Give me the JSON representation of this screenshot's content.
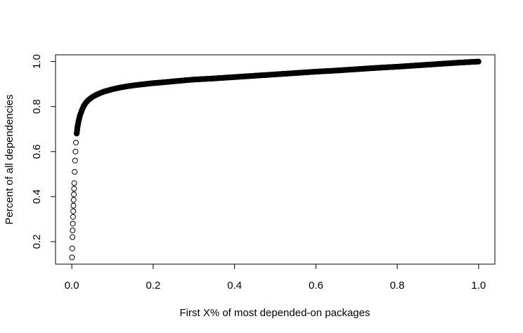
{
  "chart_data": {
    "type": "scatter",
    "title": "",
    "xlabel": "First X% of most depended-on packages",
    "ylabel": "Percent of all dependencies",
    "xlim": [
      -0.04,
      1.04
    ],
    "ylim": [
      0.1,
      1.03
    ],
    "x_ticks": [
      0.0,
      0.2,
      0.4,
      0.6,
      0.8,
      1.0
    ],
    "x_tick_labels": [
      "0.0",
      "0.2",
      "0.4",
      "0.6",
      "0.8",
      "1.0"
    ],
    "y_ticks": [
      0.2,
      0.4,
      0.6,
      0.8,
      1.0
    ],
    "y_tick_labels": [
      "0.2",
      "0.4",
      "0.6",
      "0.8",
      "1.0"
    ],
    "grid": false,
    "legend": "none",
    "marker": "open-circle",
    "marker_color": "#000000",
    "series": [
      {
        "x": [
          0.0005,
          0.001,
          0.0015,
          0.002,
          0.0025,
          0.003,
          0.0035,
          0.004,
          0.0045,
          0.005,
          0.0055,
          0.006,
          0.007,
          0.008,
          0.009,
          0.01,
          0.012,
          0.014,
          0.016,
          0.018,
          0.02,
          0.025,
          0.03,
          0.035,
          0.04,
          0.05,
          0.06,
          0.07,
          0.08,
          0.09,
          0.1,
          0.12,
          0.14,
          0.16,
          0.18,
          0.2,
          0.22,
          0.25,
          0.28,
          0.3,
          0.35,
          0.4,
          0.45,
          0.5,
          0.55,
          0.6,
          0.65,
          0.7,
          0.75,
          0.8,
          0.85,
          0.9,
          0.95,
          1.0
        ],
        "y": [
          0.13,
          0.17,
          0.22,
          0.25,
          0.28,
          0.31,
          0.335,
          0.36,
          0.385,
          0.41,
          0.435,
          0.46,
          0.51,
          0.56,
          0.6,
          0.64,
          0.68,
          0.71,
          0.73,
          0.745,
          0.76,
          0.785,
          0.805,
          0.818,
          0.828,
          0.842,
          0.852,
          0.86,
          0.867,
          0.872,
          0.877,
          0.885,
          0.891,
          0.896,
          0.9,
          0.904,
          0.907,
          0.912,
          0.917,
          0.92,
          0.925,
          0.931,
          0.937,
          0.943,
          0.949,
          0.955,
          0.96,
          0.966,
          0.972,
          0.977,
          0.983,
          0.989,
          0.995,
          1.0
        ]
      }
    ]
  }
}
